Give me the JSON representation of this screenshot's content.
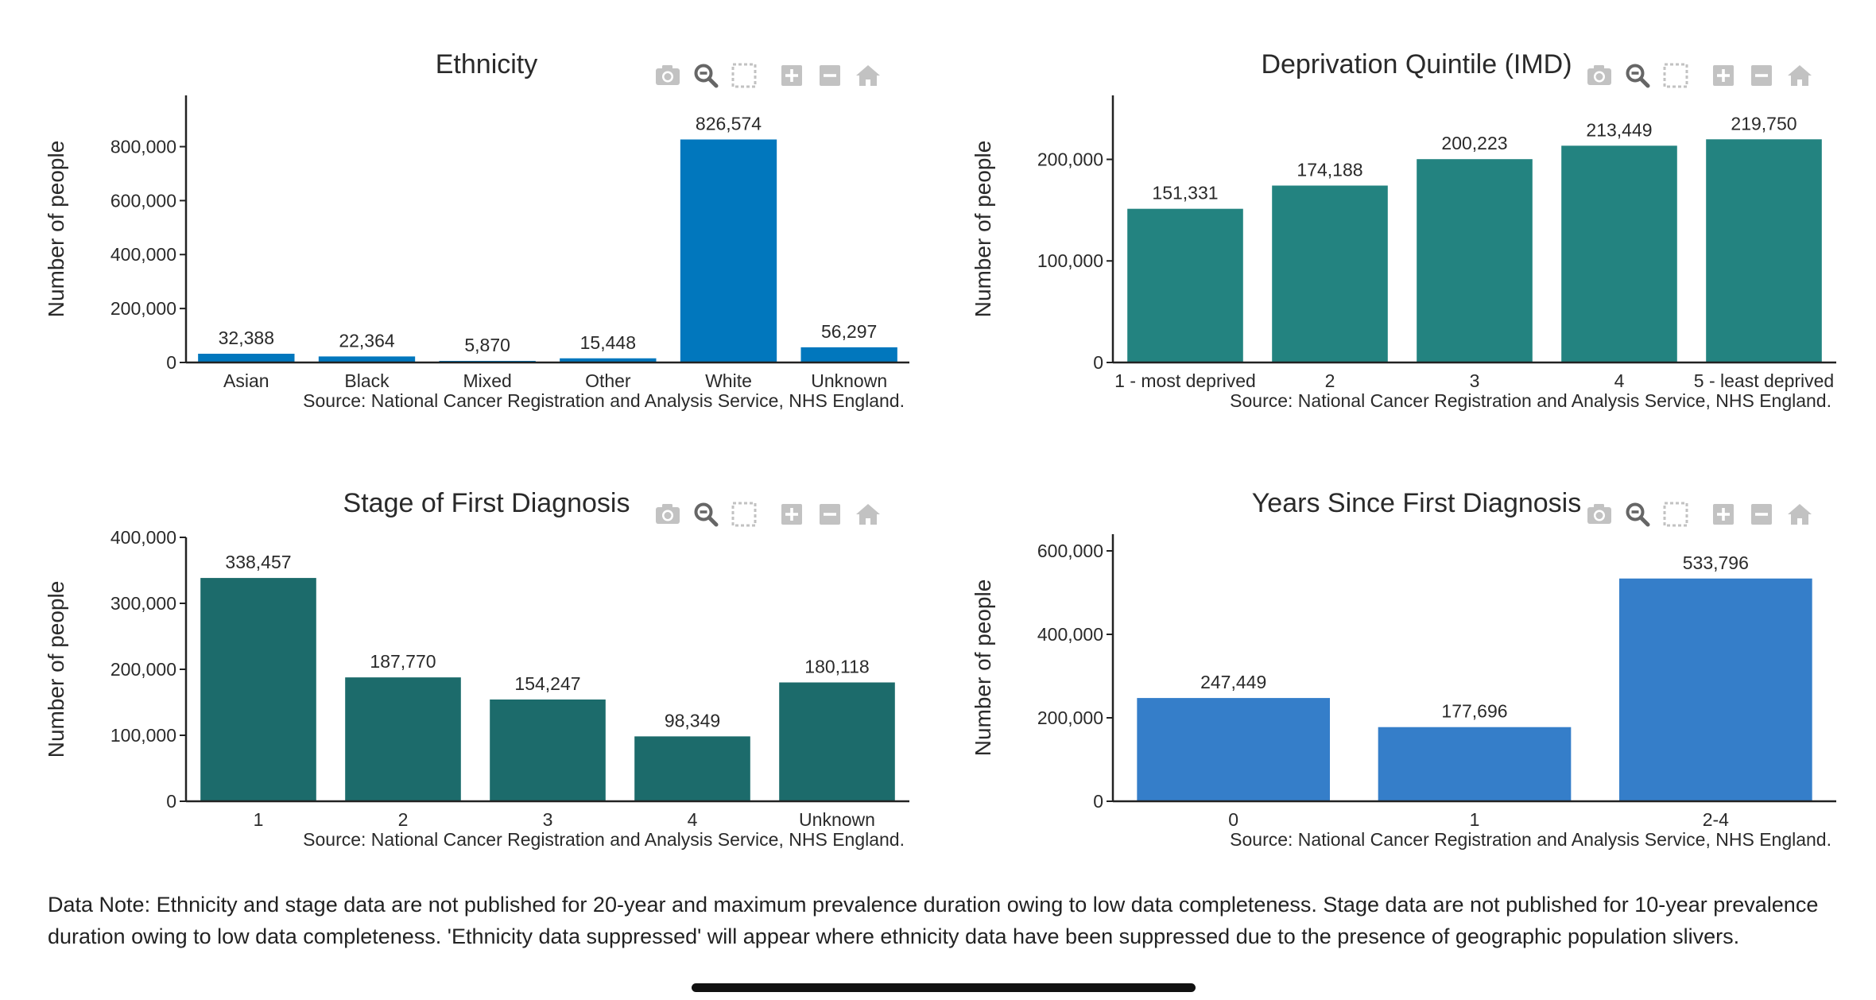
{
  "colors": {
    "ethnicity_bar": "#0177bd",
    "deprivation_bar": "#238380",
    "stage_bar": "#1c6b6b",
    "years_bar": "#357ec9",
    "text": "#2a2a2a",
    "modebar_icon": "#c2c2c2",
    "modebar_active": "#666666"
  },
  "modebar_icons": [
    "camera-icon",
    "zoom-icon",
    "select-box-icon",
    "zoom-in-icon",
    "zoom-out-icon",
    "reset-home-icon"
  ],
  "source": "Source: National Cancer Registration and Analysis Service, NHS England.",
  "chart_data": [
    {
      "type": "bar",
      "title": "Ethnicity",
      "ylabel": "Number of people",
      "xlabel": "",
      "categories": [
        "Asian",
        "Black",
        "Mixed",
        "Other",
        "White",
        "Unknown"
      ],
      "values": [
        32388,
        22364,
        5870,
        15448,
        826574,
        56297
      ],
      "value_labels": [
        "32,388",
        "22,364",
        "5,870",
        "15,448",
        "826,574",
        "56,297"
      ],
      "ylim": [
        0,
        990000
      ],
      "yticks": [
        0,
        200000,
        400000,
        600000,
        800000
      ],
      "ytick_labels": [
        "0",
        "200,000",
        "400,000",
        "600,000",
        "800,000"
      ],
      "color": "#0177bd",
      "grid": false
    },
    {
      "type": "bar",
      "title": "Deprivation Quintile (IMD)",
      "ylabel": "Number of people",
      "xlabel": "",
      "categories": [
        "1 - most deprived",
        "2",
        "3",
        "4",
        "5 - least deprived"
      ],
      "values": [
        151331,
        174188,
        200223,
        213449,
        219750
      ],
      "value_labels": [
        "151,331",
        "174,188",
        "200,223",
        "213,449",
        "219,750"
      ],
      "ylim": [
        0,
        263000
      ],
      "yticks": [
        0,
        100000,
        200000
      ],
      "ytick_labels": [
        "0",
        "100,000",
        "200,000"
      ],
      "color": "#238380",
      "grid": false
    },
    {
      "type": "bar",
      "title": "Stage of First Diagnosis",
      "ylabel": "Number of people",
      "xlabel": "",
      "categories": [
        "1",
        "2",
        "3",
        "4",
        "Unknown"
      ],
      "values": [
        338457,
        187770,
        154247,
        98349,
        180118
      ],
      "value_labels": [
        "338,457",
        "187,770",
        "154,247",
        "98,349",
        "180,118"
      ],
      "ylim": [
        0,
        400000
      ],
      "yticks": [
        0,
        100000,
        200000,
        300000,
        400000
      ],
      "ytick_labels": [
        "0",
        "100,000",
        "200,000",
        "300,000",
        "400,000"
      ],
      "color": "#1c6b6b",
      "grid": false
    },
    {
      "type": "bar",
      "title": "Years Since First Diagnosis",
      "ylabel": "Number of people",
      "xlabel": "",
      "categories": [
        "0",
        "1",
        "2-4"
      ],
      "values": [
        247449,
        177696,
        533796
      ],
      "value_labels": [
        "247,449",
        "177,696",
        "533,796"
      ],
      "ylim": [
        0,
        640000
      ],
      "yticks": [
        0,
        200000,
        400000,
        600000
      ],
      "ytick_labels": [
        "0",
        "200,000",
        "400,000",
        "600,000"
      ],
      "color": "#357ec9",
      "grid": false
    }
  ],
  "data_note": "Data Note: Ethnicity and stage data are not published for 20-year and maximum prevalence duration owing to low data completeness. Stage data are not published for 10-year prevalence duration owing to low data completeness. 'Ethnicity data suppressed' will appear where ethnicity data have been suppressed due to the presence of geographic population slivers."
}
